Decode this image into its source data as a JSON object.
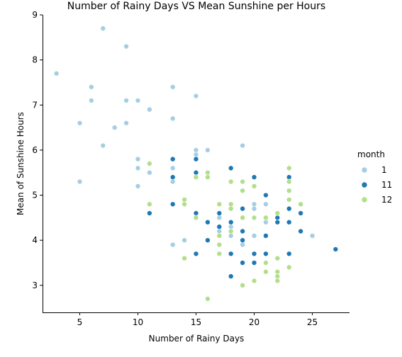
{
  "chart_data": {
    "type": "scatter",
    "title": "Number of Rainy Days VS Mean Sunshine per Hours",
    "xlabel": "Number of Rainy Days",
    "ylabel": "Mean of Sunshine Hours",
    "xlim": [
      1.8,
      28.2
    ],
    "ylim": [
      2.4,
      9.0
    ],
    "xticks": [
      5,
      10,
      15,
      20,
      25
    ],
    "yticks": [
      3,
      4,
      5,
      6,
      7,
      8,
      9
    ],
    "grid": false,
    "legend": {
      "title": "month",
      "placement": "right"
    },
    "series": [
      {
        "name": "1",
        "color": "#a6cee3",
        "points": [
          [
            3,
            7.7
          ],
          [
            5,
            6.6
          ],
          [
            5,
            5.3
          ],
          [
            6,
            7.4
          ],
          [
            6,
            7.1
          ],
          [
            7,
            8.7
          ],
          [
            7,
            6.1
          ],
          [
            8,
            6.5
          ],
          [
            9,
            8.3
          ],
          [
            9,
            7.1
          ],
          [
            9,
            6.6
          ],
          [
            10,
            7.1
          ],
          [
            10,
            5.8
          ],
          [
            10,
            5.6
          ],
          [
            10,
            5.2
          ],
          [
            11,
            6.9
          ],
          [
            11,
            5.5
          ],
          [
            13,
            7.4
          ],
          [
            13,
            6.7
          ],
          [
            13,
            5.6
          ],
          [
            13,
            5.3
          ],
          [
            13,
            3.9
          ],
          [
            14,
            4.0
          ],
          [
            15,
            7.2
          ],
          [
            15,
            6.0
          ],
          [
            15,
            5.9
          ],
          [
            16,
            6.0
          ],
          [
            17,
            4.5
          ],
          [
            17,
            4.2
          ],
          [
            18,
            4.3
          ],
          [
            18,
            4.1
          ],
          [
            19,
            6.1
          ],
          [
            19,
            3.9
          ],
          [
            20,
            4.8
          ],
          [
            20,
            4.7
          ],
          [
            20,
            4.1
          ],
          [
            21,
            4.8
          ],
          [
            21,
            4.4
          ],
          [
            25,
            4.1
          ]
        ]
      },
      {
        "name": "11",
        "color": "#1f78b4",
        "points": [
          [
            11,
            4.6
          ],
          [
            13,
            5.8
          ],
          [
            13,
            5.4
          ],
          [
            13,
            4.8
          ],
          [
            15,
            5.8
          ],
          [
            15,
            5.5
          ],
          [
            15,
            4.6
          ],
          [
            15,
            3.7
          ],
          [
            16,
            4.4
          ],
          [
            16,
            4.0
          ],
          [
            17,
            4.6
          ],
          [
            17,
            4.3
          ],
          [
            18,
            5.6
          ],
          [
            18,
            4.4
          ],
          [
            18,
            3.7
          ],
          [
            18,
            3.2
          ],
          [
            19,
            4.7
          ],
          [
            19,
            4.2
          ],
          [
            19,
            4.0
          ],
          [
            19,
            3.5
          ],
          [
            20,
            5.4
          ],
          [
            20,
            3.7
          ],
          [
            20,
            3.5
          ],
          [
            21,
            5.0
          ],
          [
            21,
            4.5
          ],
          [
            21,
            4.1
          ],
          [
            21,
            3.7
          ],
          [
            22,
            4.5
          ],
          [
            22,
            4.4
          ],
          [
            23,
            5.4
          ],
          [
            23,
            4.9
          ],
          [
            23,
            4.7
          ],
          [
            23,
            4.4
          ],
          [
            23,
            3.7
          ],
          [
            24,
            4.6
          ],
          [
            24,
            4.2
          ],
          [
            27,
            3.8
          ]
        ]
      },
      {
        "name": "12",
        "color": "#b2df8a",
        "points": [
          [
            11,
            5.7
          ],
          [
            11,
            4.8
          ],
          [
            14,
            4.9
          ],
          [
            14,
            4.8
          ],
          [
            14,
            3.6
          ],
          [
            15,
            5.4
          ],
          [
            15,
            4.5
          ],
          [
            16,
            5.5
          ],
          [
            16,
            5.4
          ],
          [
            16,
            2.7
          ],
          [
            17,
            4.8
          ],
          [
            17,
            4.1
          ],
          [
            17,
            3.9
          ],
          [
            17,
            3.7
          ],
          [
            18,
            5.3
          ],
          [
            18,
            4.8
          ],
          [
            18,
            4.7
          ],
          [
            18,
            4.2
          ],
          [
            19,
            5.3
          ],
          [
            19,
            5.1
          ],
          [
            19,
            4.5
          ],
          [
            19,
            3.0
          ],
          [
            20,
            5.2
          ],
          [
            20,
            4.5
          ],
          [
            20,
            3.1
          ],
          [
            21,
            4.5
          ],
          [
            21,
            3.5
          ],
          [
            21,
            3.3
          ],
          [
            22,
            4.6
          ],
          [
            22,
            3.6
          ],
          [
            22,
            3.3
          ],
          [
            22,
            3.2
          ],
          [
            22,
            3.1
          ],
          [
            23,
            5.6
          ],
          [
            23,
            5.3
          ],
          [
            23,
            5.1
          ],
          [
            23,
            4.9
          ],
          [
            23,
            3.4
          ],
          [
            24,
            4.8
          ]
        ]
      }
    ]
  }
}
